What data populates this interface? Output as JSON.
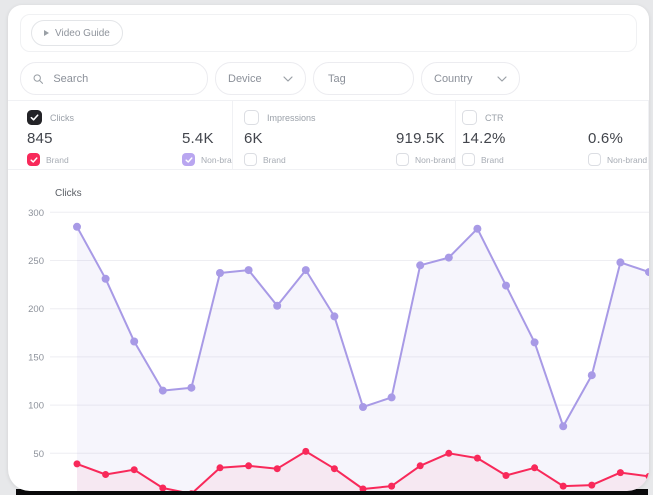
{
  "video_guide": {
    "label": "Video Guide"
  },
  "filters": {
    "search_placeholder": "Search",
    "device_label": "Device",
    "tag_placeholder": "Tag",
    "country_label": "Country"
  },
  "metric_cards": [
    {
      "metric": "Clicks",
      "checked": true,
      "brand_value": "845",
      "nonbrand_value": "5.4K",
      "brand_label": "Brand",
      "nonbrand_label": "Non-brand",
      "brand_checked": true,
      "nonbrand_checked": true
    },
    {
      "metric": "Impressions",
      "checked": false,
      "brand_value": "6K",
      "nonbrand_value": "919.5K",
      "brand_label": "Brand",
      "nonbrand_label": "Non-brand",
      "brand_checked": false,
      "nonbrand_checked": false
    },
    {
      "metric": "CTR",
      "checked": false,
      "brand_value": "14.2%",
      "nonbrand_value": "0.6%",
      "brand_label": "Brand",
      "nonbrand_label": "Non-brand",
      "brand_checked": false,
      "nonbrand_checked": false
    }
  ],
  "colors": {
    "brand": "#f8295a",
    "nonbrand": "#b9a6f0",
    "metric_check": "#232327",
    "grid": "#eeeef2"
  },
  "chart_data": {
    "type": "line",
    "title": "Clicks",
    "xlabel": "",
    "ylabel": "",
    "ylim": [
      0,
      300
    ],
    "grid": true,
    "legend_position": "none",
    "y_ticks": [
      300,
      250,
      200,
      150,
      100,
      50
    ],
    "x": [
      1,
      2,
      3,
      4,
      5,
      6,
      7,
      8,
      9,
      10,
      11,
      12,
      13,
      14,
      15,
      16,
      17,
      18,
      19,
      20,
      21
    ],
    "series": [
      {
        "name": "Brand",
        "color": "#f8295a",
        "fill_opacity": 0.06,
        "dot_r": 3.5,
        "values": [
          39,
          28,
          33,
          14,
          8,
          35,
          37,
          34,
          52,
          34,
          13,
          16,
          37,
          50,
          45,
          27,
          35,
          16,
          17,
          30,
          26
        ]
      },
      {
        "name": "Non-brand",
        "color": "#a89ae6",
        "fill_opacity": 0.1,
        "dot_r": 4,
        "values": [
          285,
          231,
          166,
          115,
          118,
          237,
          240,
          203,
          240,
          192,
          98,
          108,
          245,
          253,
          283,
          224,
          165,
          78,
          131,
          248,
          238
        ]
      }
    ]
  }
}
